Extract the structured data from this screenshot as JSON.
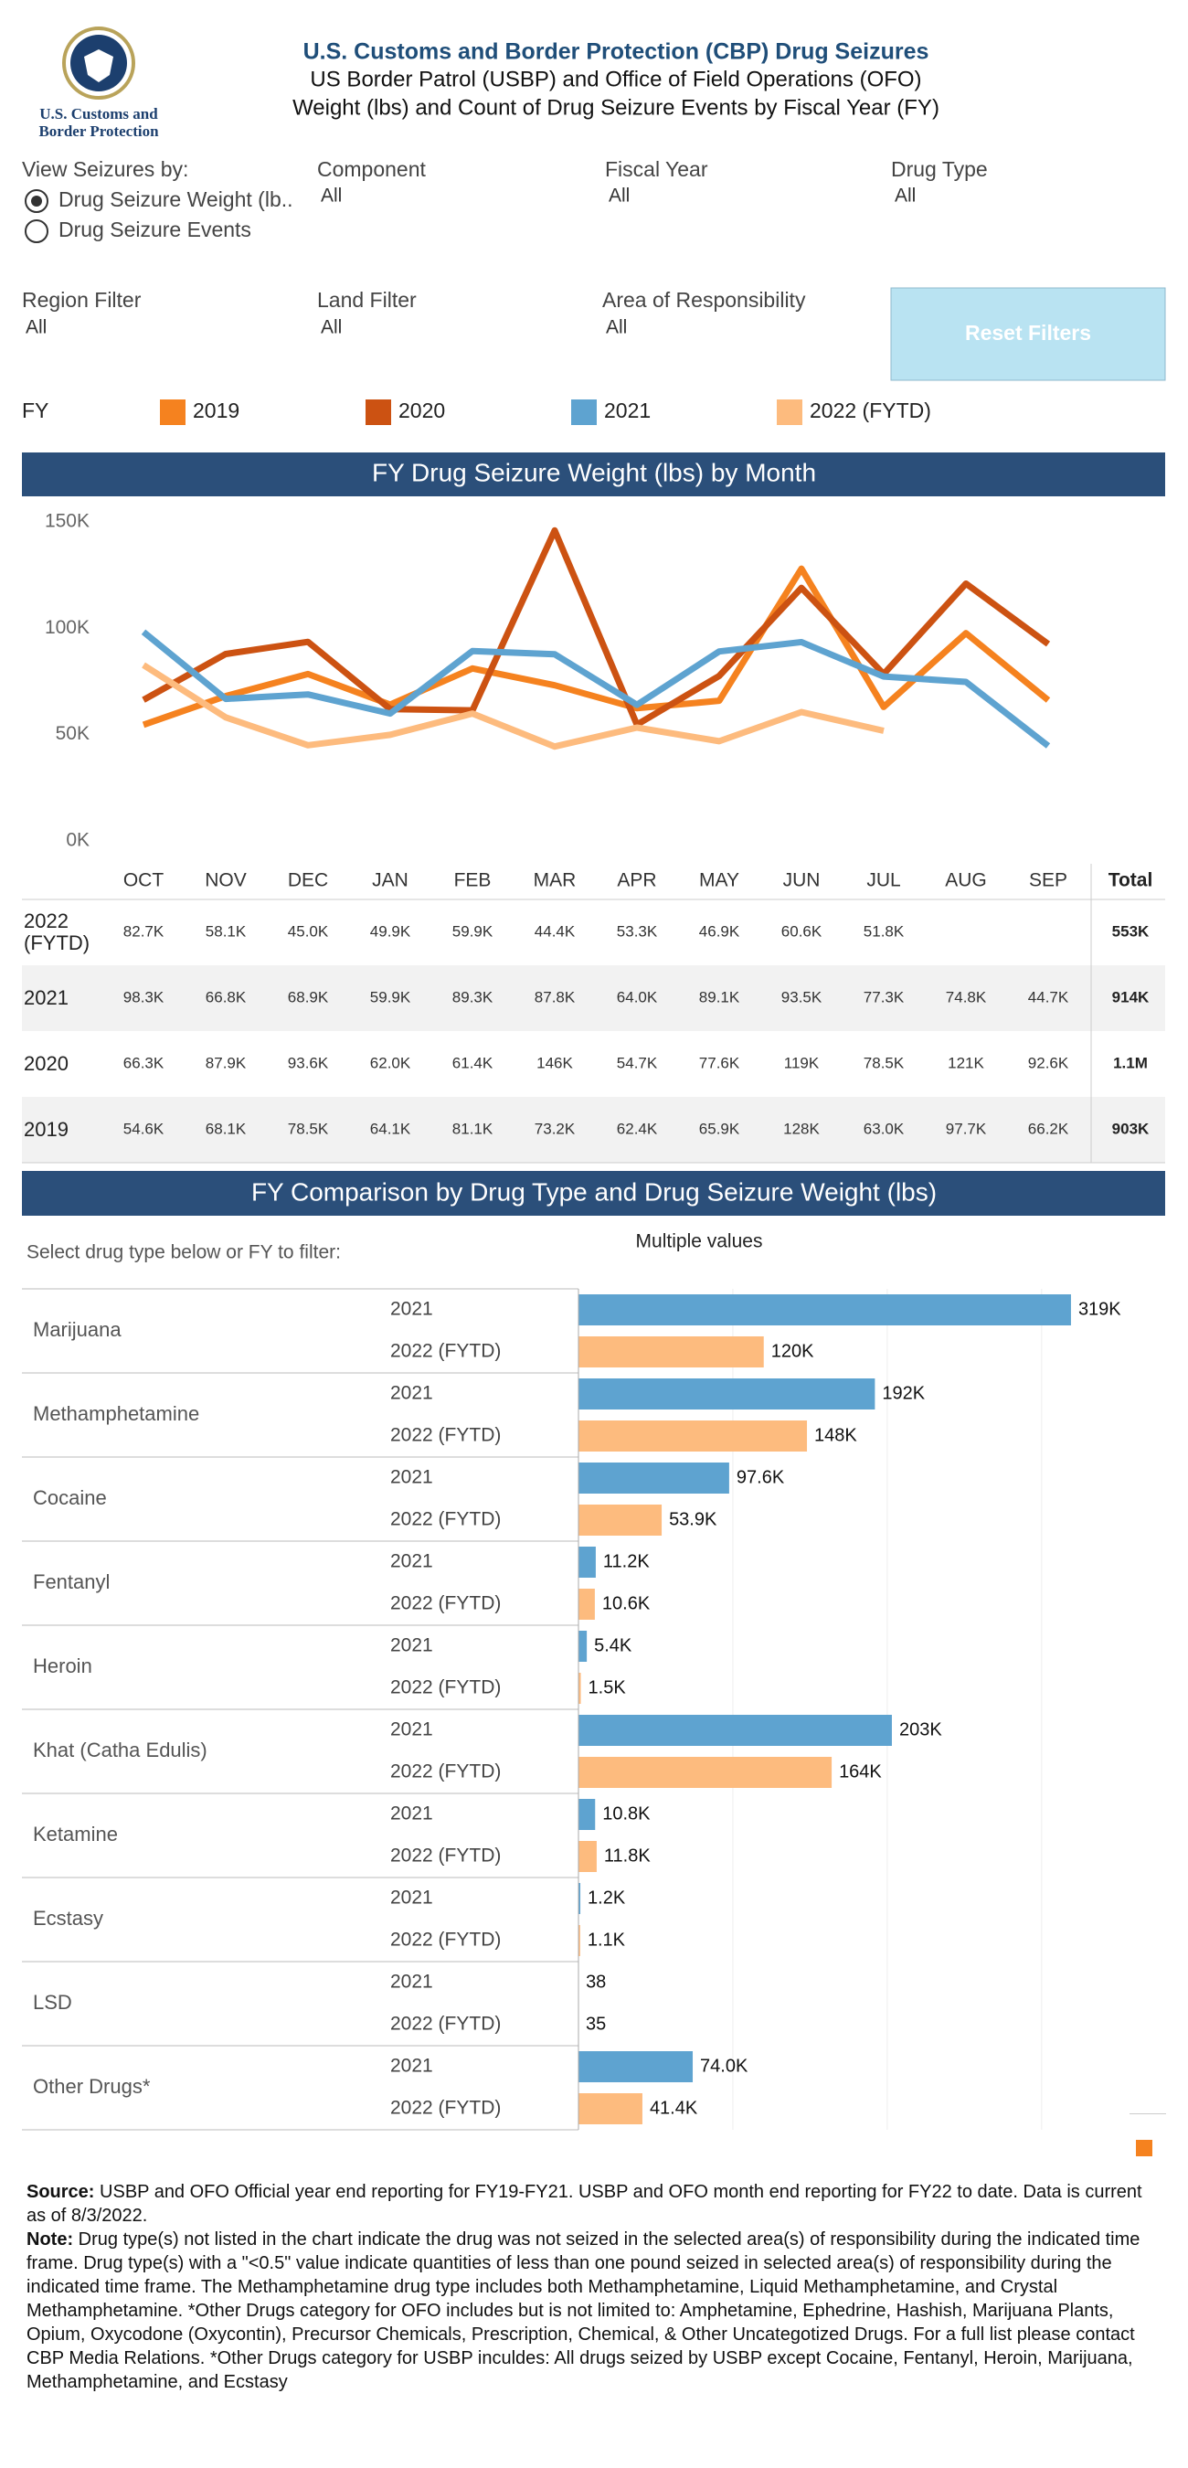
{
  "header": {
    "logo_text": [
      "U.S. Customs and",
      "Border Protection"
    ],
    "title": "U.S. Customs and Border Protection (CBP) Drug Seizures",
    "subtitle_1": "US Border Patrol (USBP) and Office of Field Operations (OFO)",
    "subtitle_2": "Weight (lbs) and Count of Drug Seizure Events by Fiscal Year (FY)"
  },
  "filters": {
    "view_label": "View Seizures by:",
    "view_options": [
      "Drug Seizure Weight (lb..",
      "Drug Seizure Events"
    ],
    "component": {
      "label": "Component",
      "value": "All"
    },
    "fiscal_year": {
      "label": "Fiscal Year",
      "value": "All"
    },
    "drug_type": {
      "label": "Drug Type",
      "value": "All"
    },
    "region": {
      "label": "Region Filter",
      "value": "All"
    },
    "land": {
      "label": "Land Filter",
      "value": "All"
    },
    "aor": {
      "label": "Area of Responsibility",
      "value": "All"
    },
    "reset_button": "Reset Filters"
  },
  "chart_data": [
    {
      "type": "line",
      "title": "FY Drug Seizure Weight (lbs) by Month",
      "legend_title": "FY",
      "categories": [
        "OCT",
        "NOV",
        "DEC",
        "JAN",
        "FEB",
        "MAR",
        "APR",
        "MAY",
        "JUN",
        "JUL",
        "AUG",
        "SEP"
      ],
      "total_header": "Total",
      "ylim": [
        0,
        150000
      ],
      "yticks": [
        {
          "value": 0,
          "label": "0K"
        },
        {
          "value": 50000,
          "label": "50K"
        },
        {
          "value": 100000,
          "label": "100K"
        },
        {
          "value": 150000,
          "label": "150K"
        }
      ],
      "grid": false,
      "series": [
        {
          "name": "2019",
          "color": "#f5821f",
          "values": [
            54600,
            68100,
            78500,
            64100,
            81100,
            73200,
            62400,
            65900,
            128000,
            63000,
            97700,
            66200
          ],
          "value_labels": [
            "54.6K",
            "68.1K",
            "78.5K",
            "64.1K",
            "81.1K",
            "73.2K",
            "62.4K",
            "65.9K",
            "128K",
            "63.0K",
            "97.7K",
            "66.2K"
          ],
          "total": 903000,
          "total_label": "903K"
        },
        {
          "name": "2020",
          "color": "#cc5212",
          "values": [
            66300,
            87900,
            93600,
            62000,
            61400,
            146000,
            54700,
            77600,
            119000,
            78500,
            121000,
            92600
          ],
          "value_labels": [
            "66.3K",
            "87.9K",
            "93.6K",
            "62.0K",
            "61.4K",
            "146K",
            "54.7K",
            "77.6K",
            "119K",
            "78.5K",
            "121K",
            "92.6K"
          ],
          "total": 1100000,
          "total_label": "1.1M"
        },
        {
          "name": "2021",
          "color": "#5ea3d0",
          "values": [
            98300,
            66800,
            68900,
            59900,
            89300,
            87800,
            64000,
            89100,
            93500,
            77300,
            74800,
            44700
          ],
          "value_labels": [
            "98.3K",
            "66.8K",
            "68.9K",
            "59.9K",
            "89.3K",
            "87.8K",
            "64.0K",
            "89.1K",
            "93.5K",
            "77.3K",
            "74.8K",
            "44.7K"
          ],
          "total": 914000,
          "total_label": "914K"
        },
        {
          "name": "2022 (FYTD)",
          "color": "#fdbb7e",
          "values": [
            82700,
            58100,
            45000,
            49900,
            59900,
            44400,
            53300,
            46900,
            60600,
            51800,
            null,
            null
          ],
          "value_labels": [
            "82.7K",
            "58.1K",
            "45.0K",
            "49.9K",
            "59.9K",
            "44.4K",
            "53.3K",
            "46.9K",
            "60.6K",
            "51.8K",
            null,
            null
          ],
          "total": 553000,
          "total_label": "553K"
        }
      ]
    },
    {
      "type": "bar",
      "orientation": "horizontal",
      "title": "FY Comparison by Drug Type and Drug Seizure Weight (lbs)",
      "subtitle": "Select drug type below or FY to filter:",
      "filter_value": "Multiple values",
      "categories": [
        "Marijuana",
        "Methamphetamine",
        "Cocaine",
        "Fentanyl",
        "Heroin",
        "Khat (Catha Edulis)",
        "Ketamine",
        "Ecstasy",
        "LSD",
        "Other Drugs*"
      ],
      "xlim": [
        0,
        380000
      ],
      "xticks": [
        0,
        100000,
        200000,
        300000
      ],
      "grid": true,
      "series": [
        {
          "name": "2021",
          "color": "#5ea3d0",
          "values": [
            319000,
            192000,
            97600,
            11200,
            5400,
            203000,
            10800,
            1200,
            38,
            74000
          ],
          "value_labels": [
            "319K",
            "192K",
            "97.6K",
            "11.2K",
            "5.4K",
            "203K",
            "10.8K",
            "1.2K",
            "38",
            "74.0K"
          ]
        },
        {
          "name": "2022 (FYTD)",
          "color": "#fdbb7e",
          "values": [
            120000,
            148000,
            53900,
            10600,
            1500,
            164000,
            11800,
            1100,
            35,
            41400
          ],
          "value_labels": [
            "120K",
            "148K",
            "53.9K",
            "10.6K",
            "1.5K",
            "164K",
            "11.8K",
            "1.1K",
            "35",
            "41.4K"
          ]
        }
      ]
    }
  ],
  "notes": {
    "source_label": "Source:",
    "source": "USBP and OFO Official year end reporting for FY19-FY21. USBP and OFO month end reporting for FY22 to date. Data is current as of 8/3/2022.",
    "note_label": "Note:",
    "note": "Drug type(s) not listed in the chart indicate the drug was not seized in the selected area(s) of responsibility during the indicated time frame. Drug type(s) with a \"<0.5\" value indicate quantities of less than one pound seized in selected area(s) of responsibility during the indicated time frame. The Methamphetamine drug type includes both Methamphetamine, Liquid Methamphetamine, and Crystal Methamphetamine. *Other Drugs category for OFO includes but is not limited to: Amphetamine, Ephedrine, Hashish, Marijuana Plants, Opium, Oxycodone (Oxycontin), Precursor Chemicals, Prescription, Chemical, & Other Uncategotized Drugs. For a full list please contact CBP Media Relations.  *Other Drugs category for USBP inculdes: All drugs seized by USBP except Cocaine, Fentanyl, Heroin, Marijuana, Methamphetamine, and Ecstasy"
  }
}
